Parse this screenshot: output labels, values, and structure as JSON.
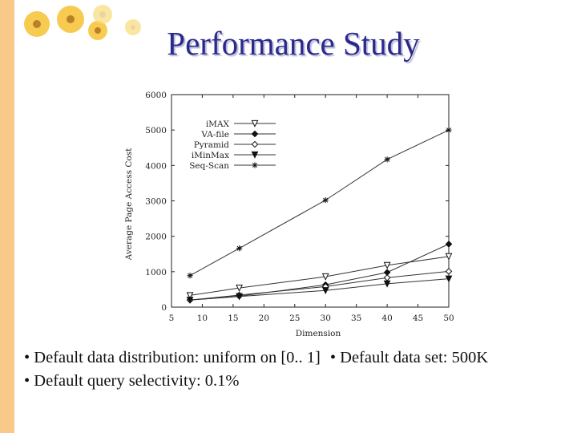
{
  "slide": {
    "title": "Performance Study",
    "bullets": {
      "b1": "• Default data distribution: uniform on [0.. 1]",
      "b2": "• Default data set: 500K",
      "b3": "• Default query selectivity: 0.1%"
    }
  },
  "chart_data": {
    "type": "line",
    "xlabel": "Dimension",
    "ylabel": "Average Page Access Cost",
    "xlim": [
      5,
      50
    ],
    "ylim": [
      0,
      6000
    ],
    "xticks": [
      5,
      10,
      15,
      20,
      25,
      30,
      35,
      40,
      45,
      50
    ],
    "yticks": [
      0,
      1000,
      2000,
      3000,
      4000,
      5000,
      6000
    ],
    "legend_position": "top-left",
    "grid": false,
    "x": [
      8,
      16,
      30,
      40,
      50
    ],
    "series": [
      {
        "name": "iMAX",
        "marker": "triangle-down-open",
        "values": [
          330,
          540,
          860,
          1180,
          1430
        ]
      },
      {
        "name": "VA-file",
        "marker": "diamond-filled",
        "values": [
          200,
          310,
          630,
          980,
          1780
        ]
      },
      {
        "name": "Pyramid",
        "marker": "diamond-open",
        "values": [
          200,
          340,
          580,
          830,
          1010
        ]
      },
      {
        "name": "iMinMax",
        "marker": "triangle-down-filled",
        "values": [
          200,
          300,
          470,
          660,
          800
        ]
      },
      {
        "name": "Seq-Scan",
        "marker": "asterisk",
        "values": [
          890,
          1660,
          3020,
          4170,
          5000
        ]
      }
    ]
  }
}
